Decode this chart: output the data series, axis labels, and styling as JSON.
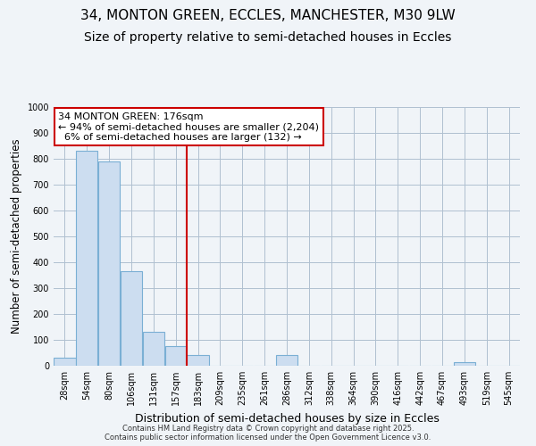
{
  "title_line1": "34, MONTON GREEN, ECCLES, MANCHESTER, M30 9LW",
  "title_line2": "Size of property relative to semi-detached houses in Eccles",
  "xlabel": "Distribution of semi-detached houses by size in Eccles",
  "ylabel": "Number of semi-detached properties",
  "categories": [
    "28sqm",
    "54sqm",
    "80sqm",
    "106sqm",
    "131sqm",
    "157sqm",
    "183sqm",
    "209sqm",
    "235sqm",
    "261sqm",
    "286sqm",
    "312sqm",
    "338sqm",
    "364sqm",
    "390sqm",
    "416sqm",
    "442sqm",
    "467sqm",
    "493sqm",
    "519sqm",
    "545sqm"
  ],
  "values": [
    30,
    830,
    790,
    365,
    130,
    75,
    40,
    0,
    0,
    0,
    40,
    0,
    0,
    0,
    0,
    0,
    0,
    0,
    15,
    0,
    0
  ],
  "bar_color": "#ccddf0",
  "bar_edge_color": "#7aafd4",
  "property_line_x": 5.5,
  "property_line_color": "#cc0000",
  "ylim": [
    0,
    1000
  ],
  "yticks": [
    0,
    100,
    200,
    300,
    400,
    500,
    600,
    700,
    800,
    900,
    1000
  ],
  "annotation_text": "34 MONTON GREEN: 176sqm\n← 94% of semi-detached houses are smaller (2,204)\n  6% of semi-detached houses are larger (132) →",
  "annotation_box_color": "#cc0000",
  "footer_line1": "Contains HM Land Registry data © Crown copyright and database right 2025.",
  "footer_line2": "Contains public sector information licensed under the Open Government Licence v3.0.",
  "background_color": "#f0f4f8",
  "grid_color": "#b0c0d0",
  "title_fontsize": 11,
  "subtitle_fontsize": 10,
  "tick_fontsize": 7,
  "ylabel_fontsize": 8.5,
  "xlabel_fontsize": 9,
  "annotation_fontsize": 8,
  "footer_fontsize": 6
}
